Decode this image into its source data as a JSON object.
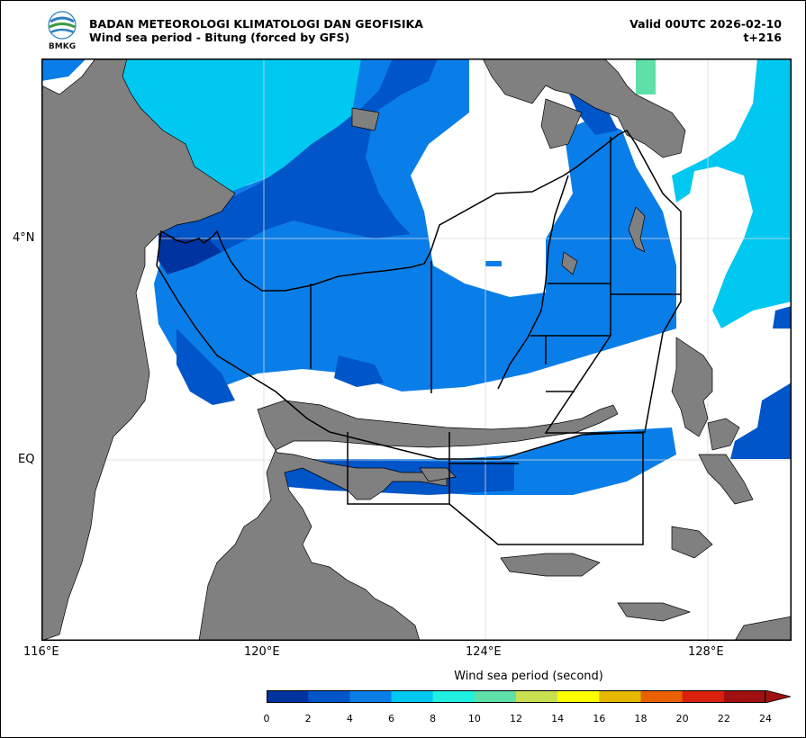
{
  "header": {
    "org_name": "BADAN METEOROLOGI KLIMATOLOGI DAN GEOFISIKA",
    "subtitle": "Wind sea period - Bitung (forced by GFS)",
    "valid_time": "Valid 00UTC 2026-02-10",
    "forecast_step": "t+216",
    "logo_text": "BMKG"
  },
  "map": {
    "lon_labels": [
      "116°E",
      "120°E",
      "124°E",
      "128°E"
    ],
    "lat_labels": [
      "4°N",
      "EQ"
    ],
    "land_color": "#808080",
    "grid_color": "#d9d9d9"
  },
  "colorbar": {
    "title": "Wind sea period (second)",
    "ticks": [
      "0",
      "2",
      "4",
      "6",
      "8",
      "10",
      "12",
      "14",
      "16",
      "18",
      "20",
      "22",
      "24"
    ],
    "colors": [
      "#0033a0",
      "#0055c8",
      "#0a7ee8",
      "#00c8f0",
      "#20f0e0",
      "#5ee0a8",
      "#c8e050",
      "#ffff00",
      "#e6b800",
      "#e86000",
      "#dc2010",
      "#a01010"
    ],
    "extend_color": "#a01010"
  }
}
